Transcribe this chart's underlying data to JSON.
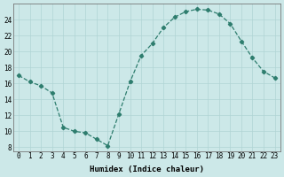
{
  "x": [
    0,
    1,
    2,
    3,
    4,
    5,
    6,
    7,
    8,
    9,
    10,
    11,
    12,
    13,
    14,
    15,
    16,
    17,
    18,
    19,
    20,
    21,
    22,
    23
  ],
  "y": [
    17,
    16.2,
    15.7,
    14.8,
    10.5,
    10.0,
    9.8,
    9.0,
    8.2,
    12.2,
    16.2,
    19.5,
    21.0,
    23.0,
    24.3,
    25.0,
    25.3,
    25.2,
    24.7,
    23.5,
    21.3,
    19.2,
    17.5,
    16.7
  ],
  "line_color": "#2e7d6e",
  "marker": "D",
  "markersize": 2.2,
  "linewidth": 0.9,
  "bg_color": "#cce8e8",
  "grid_color": "#b0d4d4",
  "xlabel": "Humidex (Indice chaleur)",
  "ylabel": "",
  "title": "",
  "xlim": [
    -0.5,
    23.5
  ],
  "ylim": [
    7.5,
    26
  ],
  "yticks": [
    8,
    10,
    12,
    14,
    16,
    18,
    20,
    22,
    24
  ],
  "xticks": [
    0,
    1,
    2,
    3,
    4,
    5,
    6,
    7,
    8,
    9,
    10,
    11,
    12,
    13,
    14,
    15,
    16,
    17,
    18,
    19,
    20,
    21,
    22,
    23
  ],
  "tick_fontsize": 5.5,
  "label_fontsize": 6.5
}
